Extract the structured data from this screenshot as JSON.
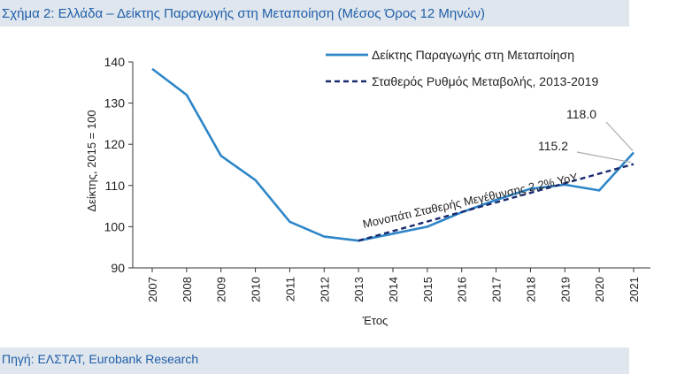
{
  "figure": {
    "title": "Σχήμα 2: Ελλάδα – Δείκτης Παραγωγής στη Μεταποίηση (Μέσος Όρος 12 Μηνών)",
    "source": "Πηγή: ΕΛΣΤΑΤ, Eurobank Research"
  },
  "colors": {
    "brand_blue": "#1f5ea8",
    "band_bg": "#dfe6ee",
    "index_line": "#2e86c8",
    "trend_line": "#1a2a6e"
  },
  "chart_data": {
    "type": "line",
    "xlabel": "Έτος",
    "ylabel": "Δείκτης, 2015 = 100",
    "ylim": [
      90,
      140
    ],
    "yticks": [
      90,
      100,
      110,
      120,
      130,
      140
    ],
    "grid": false,
    "legend_position": "top-right",
    "categories": [
      "2007",
      "2008",
      "2009",
      "2010",
      "2011",
      "2012",
      "2013",
      "2014",
      "2015",
      "2016",
      "2017",
      "2018",
      "2019",
      "2020",
      "2021"
    ],
    "series": [
      {
        "name": "Δείκτης Παραγωγής στη Μεταποίηση",
        "style": "solid",
        "x": [
          2007,
          2008,
          2009,
          2010,
          2011,
          2012,
          2013,
          2014,
          2015,
          2016,
          2017,
          2018,
          2019,
          2020,
          2021
        ],
        "values": [
          138.3,
          132.0,
          117.2,
          111.3,
          101.2,
          97.6,
          96.6,
          98.3,
          100.0,
          103.5,
          106.5,
          109.2,
          110.2,
          108.8,
          118.0
        ]
      },
      {
        "name": "Σταθερός Ρυθμός Μεταβολής, 2013-2019",
        "style": "dashed",
        "x": [
          2013,
          2021
        ],
        "values": [
          96.6,
          115.2
        ]
      }
    ],
    "annotations": [
      {
        "text": "118.0",
        "x": 2021,
        "y": 118.0
      },
      {
        "text": "115.2",
        "x": 2021,
        "y": 115.2
      },
      {
        "text": "Μονοπάτι Σταθερής Μεγέθυνσης 2,2% YoY"
      }
    ]
  }
}
